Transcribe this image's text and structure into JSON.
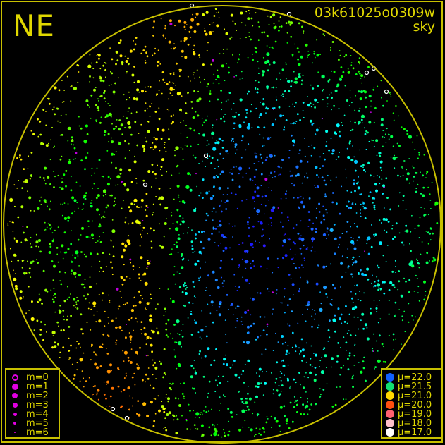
{
  "header": {
    "direction": "NE",
    "filename": "03k61025o0309w",
    "mode": "sky"
  },
  "colors": {
    "frame": "#c8c000",
    "text": "#e0d800"
  },
  "magnitude_legend": [
    {
      "label": "m=0",
      "hollow": true
    },
    {
      "label": "m=1"
    },
    {
      "label": "m=2"
    },
    {
      "label": "m=3"
    },
    {
      "label": "m=4"
    },
    {
      "label": "m=5"
    },
    {
      "label": "m=6"
    }
  ],
  "brightness_legend": [
    {
      "label": "μ=22.0",
      "color": "#1060ff"
    },
    {
      "label": "μ=21.5",
      "color": "#10e070"
    },
    {
      "label": "μ=21.0",
      "color": "#ffd800"
    },
    {
      "label": "μ=20.0",
      "color": "#ff5010"
    },
    {
      "label": "μ=19.0",
      "color": "#ff6070"
    },
    {
      "label": "μ=18.0",
      "color": "#ffc0c8"
    },
    {
      "label": "μ=17.0",
      "color": "#ffffff"
    }
  ]
}
